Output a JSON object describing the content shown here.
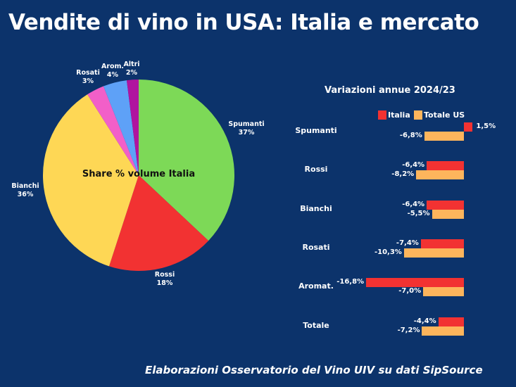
{
  "title": "Vendite di vino in USA: Italia e mercato",
  "footer": "Elaborazioni Osservatorio del Vino UIV su dati SipSource",
  "colors": {
    "background": "#0c336b",
    "italia": "#f23232",
    "totale_us": "#fdb55c"
  },
  "chart_data": [
    {
      "type": "pie",
      "title": "Share % volume Italia",
      "categories": [
        "Spumanti",
        "Rossi",
        "Bianchi",
        "Rosati",
        "Arom.",
        "Altri"
      ],
      "values": [
        37,
        18,
        36,
        3,
        4,
        2
      ],
      "labels": [
        "37%",
        "18%",
        "36%",
        "3%",
        "4%",
        "2%"
      ],
      "colors": [
        "#7dd957",
        "#f23232",
        "#fed755",
        "#f25fc8",
        "#5ea1f7",
        "#b0149f"
      ]
    },
    {
      "type": "bar",
      "orientation": "horizontal",
      "title": "Variazioni annue 2024/23",
      "categories": [
        "Spumanti",
        "Rossi",
        "Bianchi",
        "Rosati",
        "Aromat.",
        "Totale"
      ],
      "series": [
        {
          "name": "Italia",
          "values": [
            1.5,
            -6.4,
            -6.4,
            -7.4,
            -16.8,
            -4.4
          ],
          "labels": [
            "1,5%",
            "-6,4%",
            "-6,4%",
            "-7,4%",
            "-16,8%",
            "-4,4%"
          ],
          "color": "#f23232"
        },
        {
          "name": "Totale US",
          "values": [
            -6.8,
            -8.2,
            -5.5,
            -10.3,
            -7.0,
            -7.2
          ],
          "labels": [
            "-6,8%",
            "-8,2%",
            "-5,5%",
            "-10,3%",
            "-7,0%",
            "-7,2%"
          ],
          "color": "#fdb55c"
        }
      ],
      "legend_position": "top",
      "grid": false
    }
  ]
}
